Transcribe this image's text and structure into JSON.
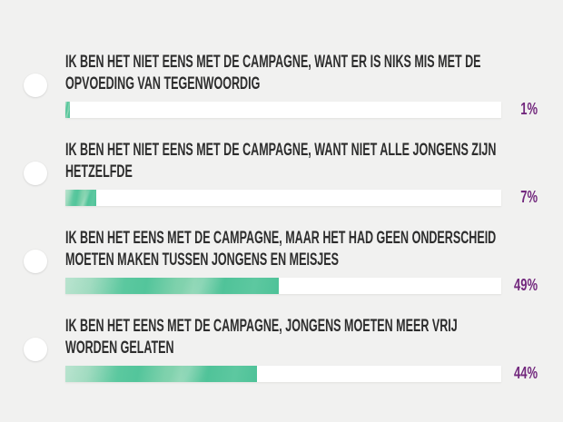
{
  "page": {
    "background_color": "#f1f1f0",
    "label_text_color": "#2d2d2d",
    "percent_text_color": "#72287d",
    "bar_track_color": "#ffffff",
    "bar_fill_color_light": "#a6dcc2",
    "bar_fill_color_dark": "#4ec298"
  },
  "poll": {
    "options": [
      {
        "label_line1": "IK BEN HET NIET EENS MET DE CAMPAGNE, WANT ER IS NIKS MIS MET DE",
        "label_line2": "OPVOEDING VAN TEGENWOORDIG",
        "percent": 1,
        "percent_label": "1%"
      },
      {
        "label_line1": "IK BEN HET NIET EENS MET DE CAMPAGNE, WANT NIET ALLE JONGENS ZIJN",
        "label_line2": "HETZELFDE",
        "percent": 7,
        "percent_label": "7%"
      },
      {
        "label_line1": "IK BEN HET EENS MET DE CAMPAGNE, MAAR HET HAD GEEN ONDERSCHEID",
        "label_line2": "MOETEN MAKEN TUSSEN JONGENS EN MEISJES",
        "percent": 49,
        "percent_label": "49%"
      },
      {
        "label_line1": "IK BEN HET EENS MET DE CAMPAGNE, JONGENS MOETEN MEER VRIJ",
        "label_line2": "WORDEN GELATEN",
        "percent": 44,
        "percent_label": "44%"
      }
    ]
  },
  "chart_data": {
    "type": "bar",
    "orientation": "horizontal",
    "categories": [
      "IK BEN HET NIET EENS MET DE CAMPAGNE, WANT ER IS NIKS MIS MET DE OPVOEDING VAN TEGENWOORDIG",
      "IK BEN HET NIET EENS MET DE CAMPAGNE, WANT NIET ALLE JONGENS ZIJN HETZELFDE",
      "IK BEN HET EENS MET DE CAMPAGNE, MAAR HET HAD GEEN ONDERSCHEID MOETEN MAKEN TUSSEN JONGENS EN MEISJES",
      "IK BEN HET EENS MET DE CAMPAGNE, JONGENS MOETEN MEER VRIJ WORDEN GELATEN"
    ],
    "values": [
      1,
      7,
      49,
      44
    ],
    "value_labels": [
      "1%",
      "7%",
      "49%",
      "44%"
    ],
    "xlim": [
      0,
      100
    ],
    "title": "",
    "xlabel": "",
    "ylabel": ""
  }
}
